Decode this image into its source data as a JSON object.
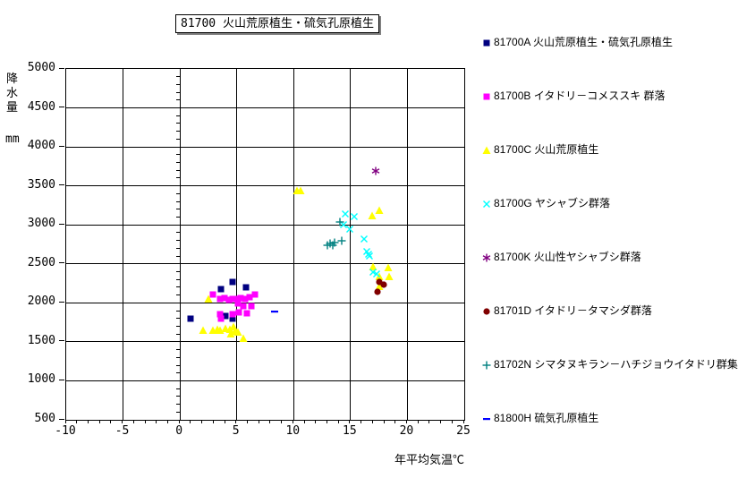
{
  "title": "81700 火山荒原植生・硫気孔原植生",
  "chart_data": {
    "type": "scatter",
    "title": "81700 火山荒原植生・硫気孔原植生",
    "xlabel": "年平均気温℃",
    "ylabel": "降水量",
    "ylabel_unit": "mm",
    "xlim": [
      -10,
      25
    ],
    "ylim": [
      500,
      5000
    ],
    "x_major_step": 5,
    "x_minor_step": 1,
    "y_major_step": 500,
    "y_minor_step": 100,
    "grid": true,
    "legend_position": "right",
    "background": "#ffffff",
    "series": [
      {
        "name": "81700A 火山荒原植生・硫気孔原植生",
        "marker": "square",
        "color": "#000080",
        "points": [
          [
            0.9,
            1850
          ],
          [
            3.6,
            2230
          ],
          [
            4.6,
            2330
          ],
          [
            5.8,
            2260
          ],
          [
            4.0,
            1890
          ],
          [
            4.6,
            1855
          ]
        ]
      },
      {
        "name": "81700B イタドリ－コメススキ 群落",
        "marker": "square",
        "color": "#FF00FF",
        "points": [
          [
            2.9,
            2160
          ],
          [
            3.5,
            2110
          ],
          [
            3.9,
            2120
          ],
          [
            4.3,
            2100
          ],
          [
            4.6,
            2105
          ],
          [
            4.9,
            2105
          ],
          [
            5.3,
            2120
          ],
          [
            5.7,
            2105
          ],
          [
            6.1,
            2130
          ],
          [
            6.6,
            2170
          ],
          [
            5.1,
            2045
          ],
          [
            5.6,
            2020
          ],
          [
            6.3,
            2020
          ],
          [
            3.5,
            1915
          ],
          [
            4.6,
            1915
          ],
          [
            5.2,
            1940
          ],
          [
            5.9,
            1920
          ],
          [
            3.6,
            1860
          ]
        ]
      },
      {
        "name": "81700C 火山荒原植生",
        "marker": "triangle",
        "color": "#FFFF00",
        "points": [
          [
            2.5,
            2110
          ],
          [
            2.0,
            1710
          ],
          [
            2.9,
            1710
          ],
          [
            3.3,
            1720
          ],
          [
            3.5,
            1710
          ],
          [
            4.0,
            1730
          ],
          [
            4.4,
            1720
          ],
          [
            4.7,
            1750
          ],
          [
            4.5,
            1660
          ],
          [
            4.9,
            1690
          ],
          [
            5.1,
            1680
          ],
          [
            5.6,
            1600
          ],
          [
            10.3,
            3500
          ],
          [
            10.6,
            3500
          ],
          [
            16.9,
            3180
          ],
          [
            17.5,
            3240
          ],
          [
            17.0,
            2525
          ],
          [
            18.3,
            2510
          ],
          [
            17.5,
            2390
          ],
          [
            18.4,
            2395
          ],
          [
            17.5,
            2265
          ]
        ]
      },
      {
        "name": "81700G ヤシャブシ群落",
        "marker": "x",
        "color": "#00FFFF",
        "points": [
          [
            14.5,
            3200
          ],
          [
            15.3,
            3165
          ],
          [
            14.4,
            3065
          ],
          [
            14.9,
            3000
          ],
          [
            16.2,
            2880
          ],
          [
            16.4,
            2720
          ],
          [
            16.6,
            2680
          ],
          [
            16.7,
            2660
          ],
          [
            17.0,
            2455
          ],
          [
            17.3,
            2430
          ]
        ]
      },
      {
        "name": "81700K 火山性ヤシャブシ群落",
        "marker": "asterisk",
        "color": "#800080",
        "points": [
          [
            17.2,
            3750
          ]
        ]
      },
      {
        "name": "81701D イタドリ－タマシダ群落",
        "marker": "circle",
        "color": "#800000",
        "points": [
          [
            17.5,
            2325
          ],
          [
            17.9,
            2290
          ],
          [
            17.4,
            2200
          ]
        ]
      },
      {
        "name": "81702N シマタヌキラン－ハチジョウイタドリ群集",
        "marker": "plus",
        "color": "#008080",
        "points": [
          [
            13.0,
            2800
          ],
          [
            13.2,
            2820
          ],
          [
            13.4,
            2800
          ],
          [
            13.6,
            2830
          ],
          [
            14.2,
            2855
          ],
          [
            14.1,
            3095
          ]
        ]
      },
      {
        "name": "81800H 硫気孔原植生",
        "marker": "dash",
        "color": "#0000FF",
        "points": [
          [
            8.3,
            1950
          ]
        ]
      }
    ]
  }
}
